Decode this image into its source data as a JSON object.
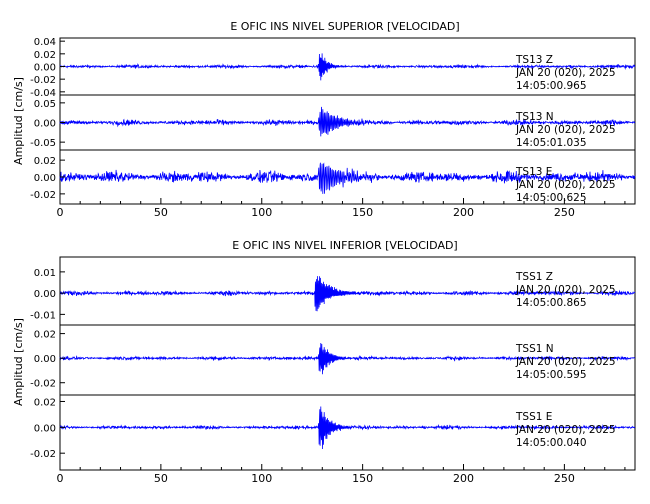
{
  "trace_color": "#0000ff",
  "chart_data": [
    {
      "type": "line",
      "title": "E OFIC INS NIVEL SUPERIOR [VELOCIDAD]",
      "ylabel": "Amplitud [cm/s]",
      "xlabel": "",
      "xlim": [
        0,
        285
      ],
      "xticks": [
        0,
        50,
        100,
        150,
        200,
        250
      ],
      "grid": false,
      "series": [
        {
          "name": "TS13 Z",
          "station": "TS13",
          "component": "Z",
          "date": "JAN 20 (020), 2025",
          "start_time": "14:05:00.965",
          "ylim": [
            -0.045,
            0.045
          ],
          "yticks": [
            "0.04",
            "0.02",
            "0.00",
            "-0.02",
            "-0.04"
          ],
          "tick_values": [
            0.04,
            0.02,
            0.0,
            -0.02,
            -0.04
          ],
          "noise": 0.0015,
          "onset": 128,
          "peak": 0.042,
          "decay": 3.0,
          "freq": 2.2
        },
        {
          "name": "TS13 N",
          "station": "TS13",
          "component": "N",
          "date": "JAN 20 (020), 2025",
          "start_time": "14:05:01.035",
          "ylim": [
            -0.07,
            0.07
          ],
          "yticks": [
            "0.05",
            "0.00",
            "-0.05"
          ],
          "tick_values": [
            0.05,
            0.0,
            -0.05
          ],
          "noise": 0.004,
          "onset": 128,
          "peak": 0.055,
          "decay": 8.0,
          "freq": 1.4
        },
        {
          "name": "TS13 E",
          "station": "TS13",
          "component": "E",
          "date": "JAN 20 (020), 2025",
          "start_time": "14:05:00.625",
          "ylim": [
            -0.032,
            0.032
          ],
          "yticks": [
            "0.02",
            "0.00",
            "-0.02"
          ],
          "tick_values": [
            0.02,
            0.0,
            -0.02
          ],
          "noise": 0.004,
          "onset": 128,
          "peak": 0.028,
          "decay": 9.0,
          "freq": 1.2
        }
      ]
    },
    {
      "type": "line",
      "title": "E OFIC INS NIVEL INFERIOR [VELOCIDAD]",
      "ylabel": "Amplitud [cm/s]",
      "xlabel": "",
      "xlim": [
        0,
        285
      ],
      "xticks": [
        0,
        50,
        100,
        150,
        200,
        250
      ],
      "grid": false,
      "series": [
        {
          "name": "TSS1 Z",
          "station": "TSS1",
          "component": "Z",
          "date": "JAN 20 (020), 2025",
          "start_time": "14:05:00.865",
          "ylim": [
            -0.015,
            0.017
          ],
          "yticks": [
            "0.01",
            "0.00",
            "-0.01"
          ],
          "tick_values": [
            0.01,
            0.0,
            -0.01
          ],
          "noise": 0.0006,
          "onset": 126,
          "peak": 0.014,
          "decay": 6.0,
          "freq": 2.0
        },
        {
          "name": "TSS1 N",
          "station": "TSS1",
          "component": "N",
          "date": "JAN 20 (020), 2025",
          "start_time": "14:05:00.595",
          "ylim": [
            -0.03,
            0.027
          ],
          "yticks": [
            "0.02",
            "0.00",
            "-0.02"
          ],
          "tick_values": [
            0.02,
            0.0,
            -0.02
          ],
          "noise": 0.0008,
          "onset": 128,
          "peak": 0.025,
          "decay": 4.0,
          "freq": 1.8
        },
        {
          "name": "TSS1 E",
          "station": "TSS1",
          "component": "E",
          "date": "JAN 20 (020), 2025",
          "start_time": "14:05:00.040",
          "ylim": [
            -0.033,
            0.025
          ],
          "yticks": [
            "0.02",
            "0.00",
            "-0.02"
          ],
          "tick_values": [
            0.02,
            0.0,
            -0.02
          ],
          "noise": 0.0008,
          "onset": 128,
          "peak": 0.03,
          "decay": 4.0,
          "freq": 1.8
        }
      ]
    }
  ]
}
